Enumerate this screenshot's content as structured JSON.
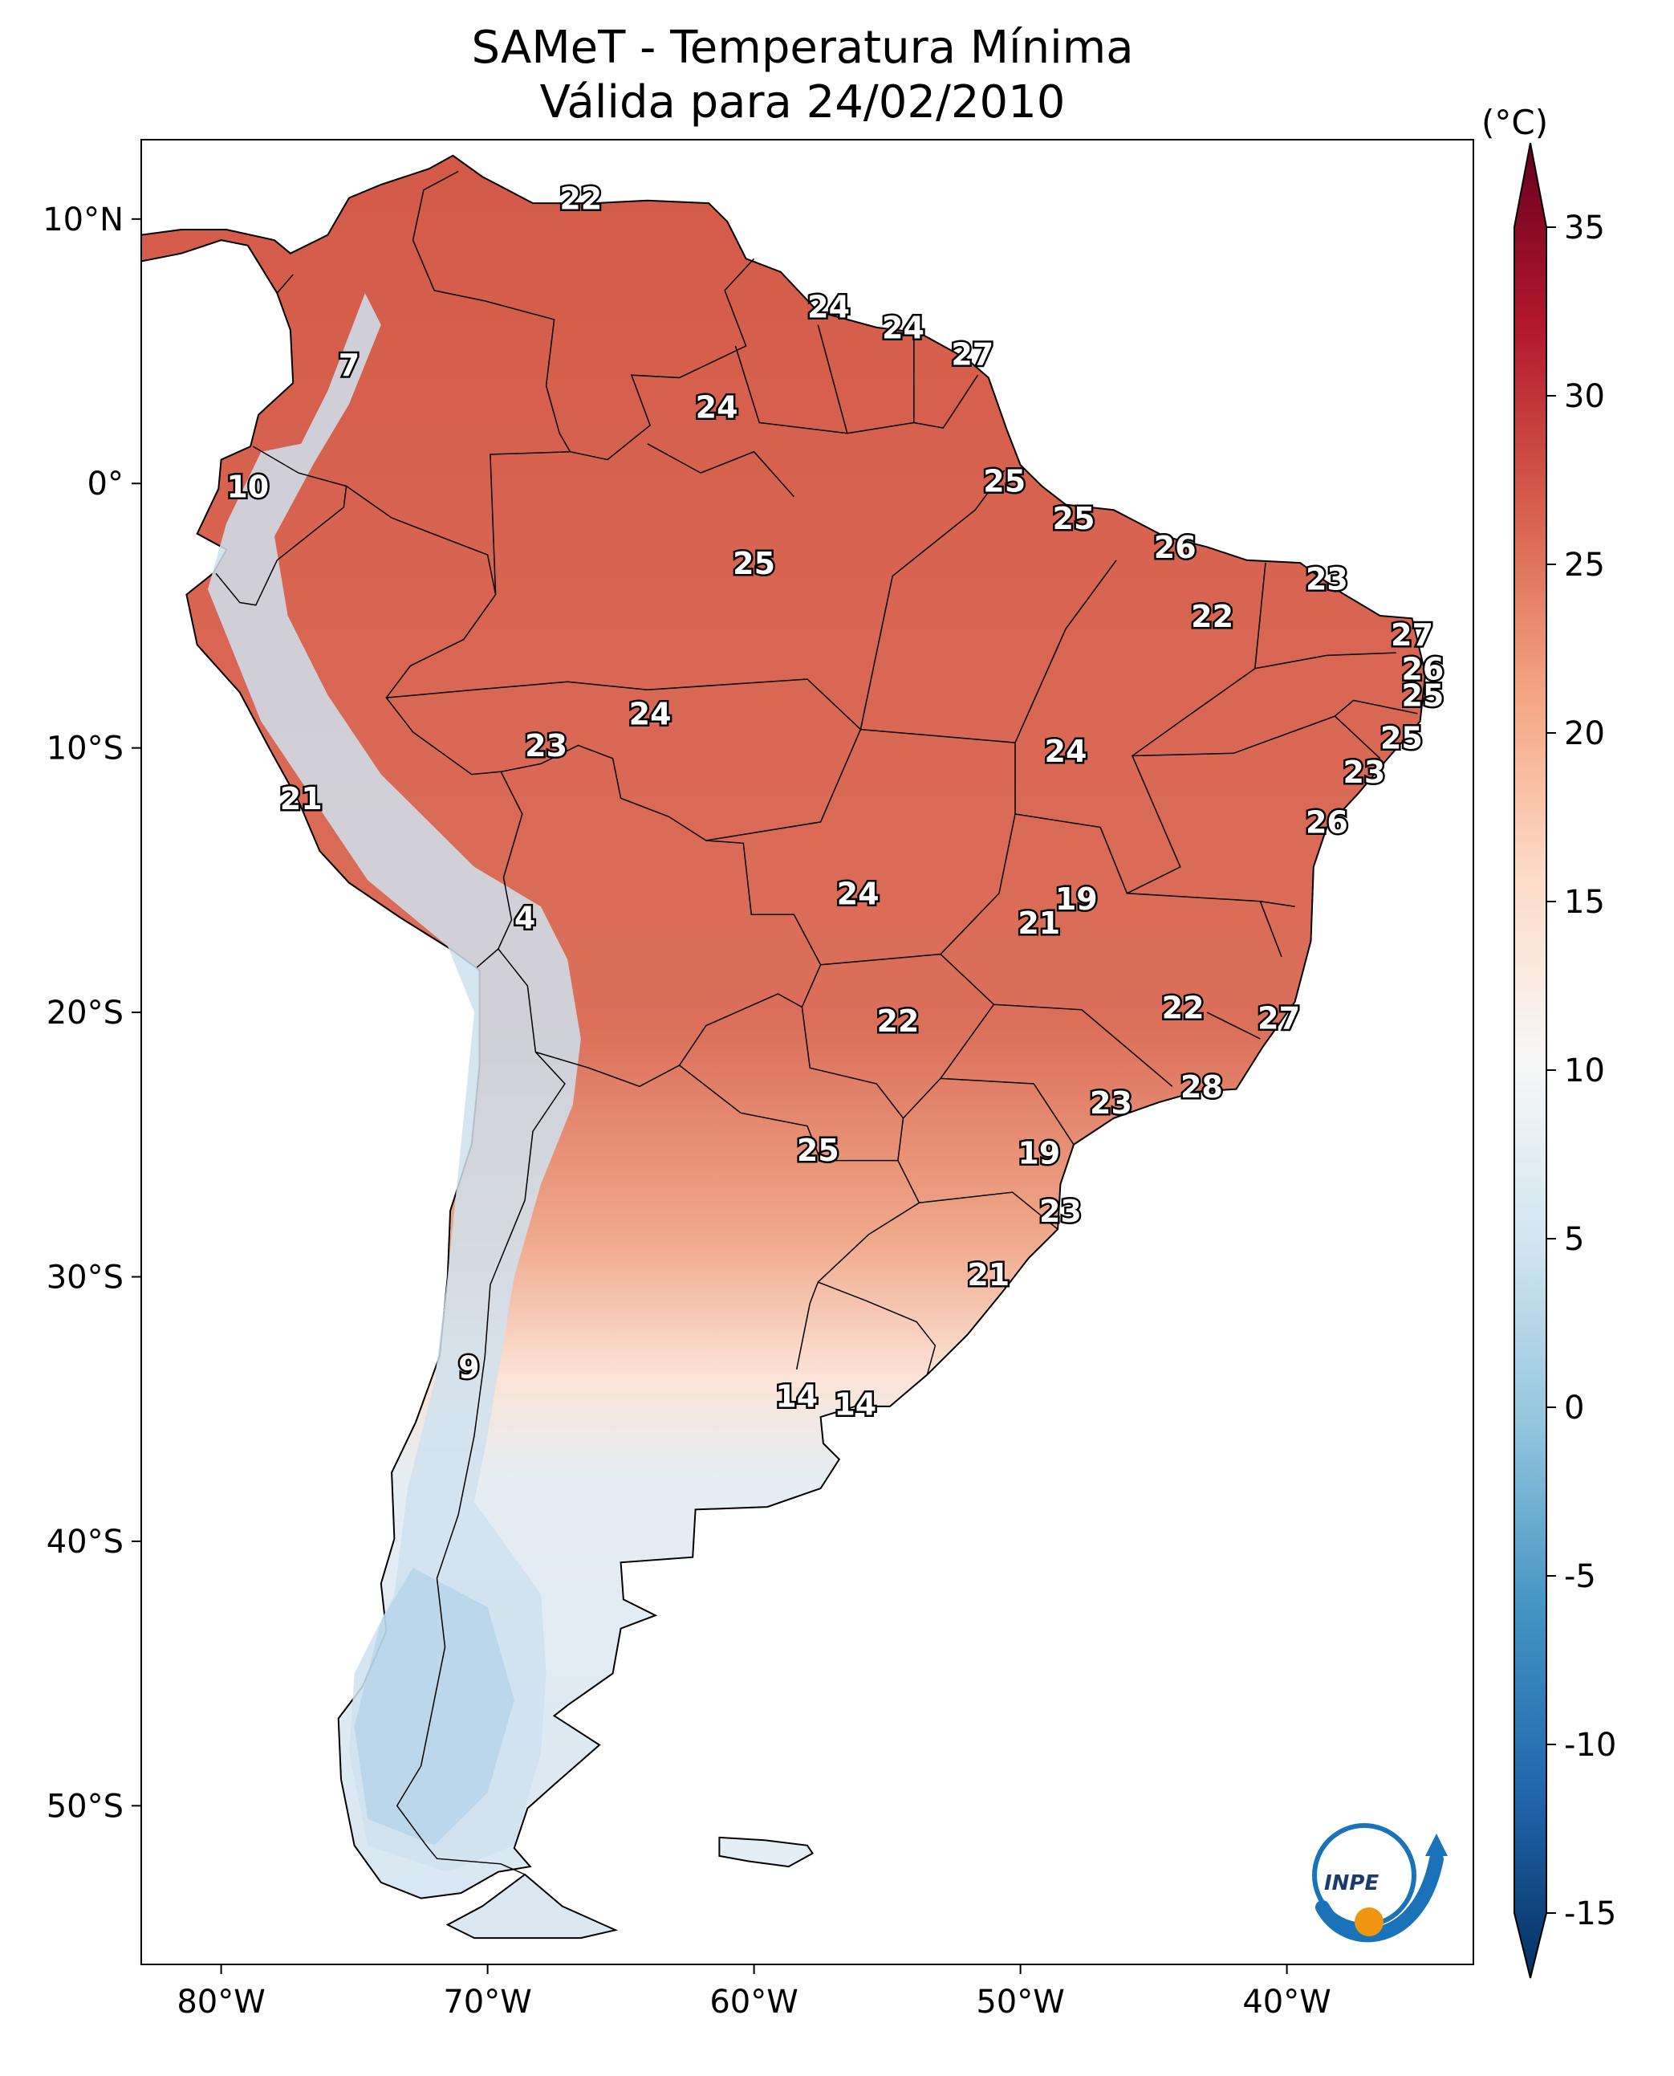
{
  "title": {
    "line1": "SAMeT - Temperatura Mínima",
    "line2": "Válida para 24/02/2010"
  },
  "colorbar": {
    "unit": "(°C)",
    "ticks": [
      "35",
      "30",
      "25",
      "20",
      "15",
      "10",
      "5",
      "0",
      "-5",
      "-10",
      "-15"
    ],
    "tick_values": [
      35,
      30,
      25,
      20,
      15,
      10,
      5,
      0,
      -5,
      -10,
      -15
    ],
    "range": [
      -15,
      35
    ],
    "extend": "both",
    "colormap": "RdBu_r",
    "colors": [
      "#053061",
      "#2166ac",
      "#4393c3",
      "#92c5de",
      "#d1e5f0",
      "#f7f7f7",
      "#fddbc7",
      "#f4a582",
      "#d6604d",
      "#b2182b",
      "#67001f"
    ]
  },
  "axes": {
    "lon_labels": [
      "80°W",
      "70°W",
      "60°W",
      "50°W",
      "40°W"
    ],
    "lon_values": [
      -80,
      -70,
      -60,
      -50,
      -40
    ],
    "lat_labels": [
      "10°N",
      "0°",
      "10°S",
      "20°S",
      "30°S",
      "40°S",
      "50°S"
    ],
    "lat_values": [
      10,
      0,
      -10,
      -20,
      -30,
      -40,
      -50
    ],
    "lon_range": [
      -83,
      -33
    ],
    "lat_range": [
      -56,
      13
    ]
  },
  "logo": {
    "text": "INPE",
    "colors": [
      "#1a73b8",
      "#f0950f"
    ]
  },
  "stations": [
    {
      "label": "22",
      "lon": -66.5,
      "lat": 10.7
    },
    {
      "label": "7",
      "lon": -75.2,
      "lat": 4.4
    },
    {
      "label": "10",
      "lon": -79.0,
      "lat": -0.2
    },
    {
      "label": "24",
      "lon": -57.2,
      "lat": 6.6
    },
    {
      "label": "24",
      "lon": -54.4,
      "lat": 5.8
    },
    {
      "label": "27",
      "lon": -51.8,
      "lat": 4.8
    },
    {
      "label": "24",
      "lon": -61.4,
      "lat": 2.8
    },
    {
      "label": "25",
      "lon": -50.6,
      "lat": 0.0
    },
    {
      "label": "25",
      "lon": -48.0,
      "lat": -1.4
    },
    {
      "label": "26",
      "lon": -44.2,
      "lat": -2.5
    },
    {
      "label": "23",
      "lon": -38.5,
      "lat": -3.7
    },
    {
      "label": "25",
      "lon": -60.0,
      "lat": -3.1
    },
    {
      "label": "22",
      "lon": -42.8,
      "lat": -5.1
    },
    {
      "label": "27",
      "lon": -35.3,
      "lat": -5.8
    },
    {
      "label": "26",
      "lon": -34.9,
      "lat": -7.1
    },
    {
      "label": "25",
      "lon": -34.9,
      "lat": -8.1
    },
    {
      "label": "25",
      "lon": -35.7,
      "lat": -9.7
    },
    {
      "label": "24",
      "lon": -63.9,
      "lat": -8.8
    },
    {
      "label": "23",
      "lon": -67.8,
      "lat": -10.0
    },
    {
      "label": "24",
      "lon": -48.3,
      "lat": -10.2
    },
    {
      "label": "23",
      "lon": -37.1,
      "lat": -11.0
    },
    {
      "label": "21",
      "lon": -77.0,
      "lat": -12.0
    },
    {
      "label": "26",
      "lon": -38.5,
      "lat": -12.9
    },
    {
      "label": "24",
      "lon": -56.1,
      "lat": -15.6
    },
    {
      "label": "19",
      "lon": -47.9,
      "lat": -15.8
    },
    {
      "label": "21",
      "lon": -49.3,
      "lat": -16.7
    },
    {
      "label": "4",
      "lon": -68.6,
      "lat": -16.5
    },
    {
      "label": "22",
      "lon": -43.9,
      "lat": -19.9
    },
    {
      "label": "27",
      "lon": -40.3,
      "lat": -20.3
    },
    {
      "label": "22",
      "lon": -54.6,
      "lat": -20.4
    },
    {
      "label": "28",
      "lon": -43.2,
      "lat": -22.9
    },
    {
      "label": "23",
      "lon": -46.6,
      "lat": -23.5
    },
    {
      "label": "25",
      "lon": -57.6,
      "lat": -25.3
    },
    {
      "label": "19",
      "lon": -49.3,
      "lat": -25.4
    },
    {
      "label": "23",
      "lon": -48.5,
      "lat": -27.6
    },
    {
      "label": "21",
      "lon": -51.2,
      "lat": -30.0
    },
    {
      "label": "9",
      "lon": -70.7,
      "lat": -33.5
    },
    {
      "label": "14",
      "lon": -58.4,
      "lat": -34.6
    },
    {
      "label": "14",
      "lon": -56.2,
      "lat": -34.9
    }
  ]
}
